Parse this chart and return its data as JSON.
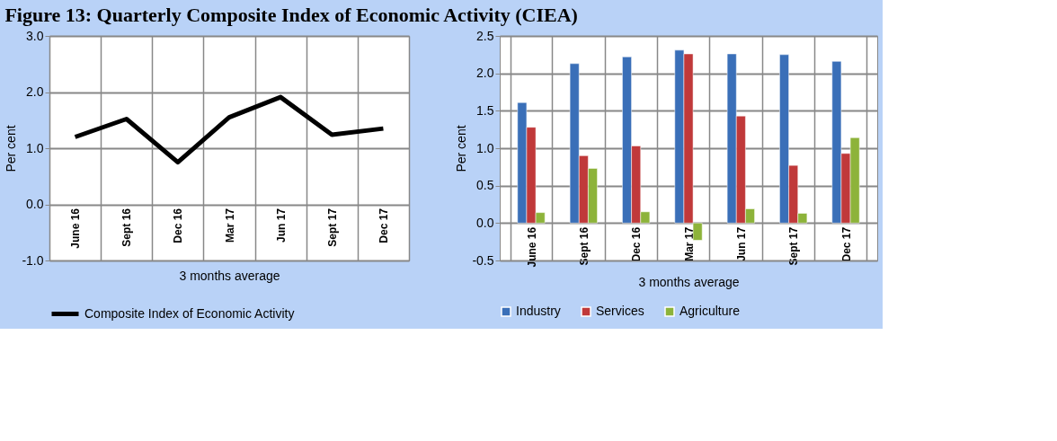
{
  "chart_data": [
    {
      "type": "line",
      "title": "Figure 13: Quarterly Composite Index of Economic Activity (CIEA)",
      "xlabel": "3 months average",
      "ylabel": "Per cent",
      "categories": [
        "June 16",
        "Sept 16",
        "Dec 16",
        "Mar 17",
        "Jun 17",
        "Sept 17",
        "Dec 17"
      ],
      "series": [
        {
          "name": "Composite Index of Economic Activity",
          "color": "#000000",
          "values": [
            1.2,
            1.52,
            0.75,
            1.55,
            1.91,
            1.24,
            1.35
          ]
        }
      ],
      "ylim": [
        -1,
        3
      ],
      "yticks": [
        {
          "value": -1,
          "label": "-1.0"
        },
        {
          "value": 0,
          "label": "0.0"
        },
        {
          "value": 1,
          "label": "1.0"
        },
        {
          "value": 2,
          "label": "2.0"
        },
        {
          "value": 3,
          "label": "3.0"
        }
      ],
      "grid": true,
      "legend": "bottom"
    },
    {
      "type": "bar",
      "xlabel": "3 months average",
      "ylabel": "Per cent",
      "categories": [
        "June 16",
        "Sept 16",
        "Dec 16",
        "Mar 17",
        "Jun 17",
        "Sept 17",
        "Dec 17"
      ],
      "series": [
        {
          "name": "Industry",
          "color": "#3a6fb8",
          "values": [
            1.61,
            2.13,
            2.22,
            2.31,
            2.26,
            2.25,
            2.16
          ]
        },
        {
          "name": "Services",
          "color": "#c0393a",
          "values": [
            1.28,
            0.9,
            1.03,
            2.26,
            1.43,
            0.77,
            0.93
          ]
        },
        {
          "name": "Agriculture",
          "color": "#8db33a",
          "values": [
            0.14,
            0.73,
            0.15,
            -0.23,
            0.19,
            0.13,
            1.14
          ]
        }
      ],
      "ylim": [
        -0.5,
        2.5
      ],
      "yticks": [
        -0.5,
        {
          "value": 0,
          "label": "0.0"
        },
        0.5,
        {
          "value": 1,
          "label": "1.0"
        },
        1.5,
        {
          "value": 2,
          "label": "2.0"
        },
        2.5
      ],
      "grid": true,
      "legend": "bottom"
    }
  ]
}
